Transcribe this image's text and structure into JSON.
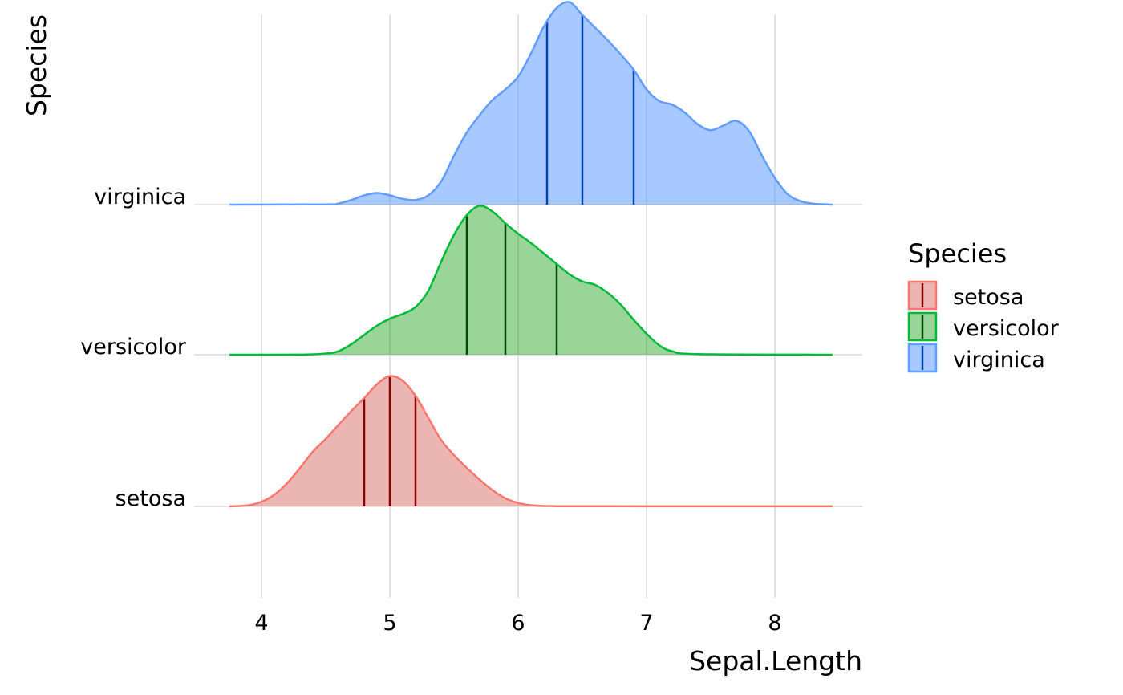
{
  "chart_data": {
    "type": "ridgeline",
    "xlabel": "Sepal.Length",
    "ylabel": "Species",
    "xlim": [
      3.73,
      8.45
    ],
    "x_ticks": [
      4,
      5,
      6,
      7,
      8
    ],
    "grid": true,
    "legend": {
      "title": "Species",
      "position": "right"
    },
    "categories": [
      "setosa",
      "versicolor",
      "virginica"
    ],
    "series": [
      {
        "name": "setosa",
        "color": "#F8766D",
        "fill": "rgba(215,109,99,0.5)",
        "quantile_color": "#8B0000",
        "quantiles": [
          4.8,
          5.0,
          5.2
        ],
        "density": [
          [
            3.75,
            0
          ],
          [
            3.9,
            0.01
          ],
          [
            4.0,
            0.04
          ],
          [
            4.1,
            0.1
          ],
          [
            4.2,
            0.2
          ],
          [
            4.3,
            0.33
          ],
          [
            4.4,
            0.47
          ],
          [
            4.5,
            0.58
          ],
          [
            4.6,
            0.7
          ],
          [
            4.7,
            0.82
          ],
          [
            4.8,
            0.93
          ],
          [
            4.9,
            1.05
          ],
          [
            5.0,
            1.12
          ],
          [
            5.1,
            1.08
          ],
          [
            5.2,
            0.95
          ],
          [
            5.3,
            0.76
          ],
          [
            5.4,
            0.57
          ],
          [
            5.5,
            0.44
          ],
          [
            5.6,
            0.33
          ],
          [
            5.7,
            0.23
          ],
          [
            5.8,
            0.14
          ],
          [
            5.9,
            0.07
          ],
          [
            6.0,
            0.03
          ],
          [
            6.1,
            0.01
          ],
          [
            6.3,
            0.002
          ],
          [
            7.0,
            0.001
          ],
          [
            8.45,
            0.001
          ]
        ]
      },
      {
        "name": "versicolor",
        "color": "#00BA38",
        "fill": "rgba(0,150,0,0.4)",
        "quantile_color": "#004D00",
        "quantiles": [
          5.6,
          5.9,
          6.3
        ],
        "density": [
          [
            3.75,
            0
          ],
          [
            4.3,
            0.001
          ],
          [
            4.5,
            0.01
          ],
          [
            4.6,
            0.03
          ],
          [
            4.7,
            0.09
          ],
          [
            4.8,
            0.17
          ],
          [
            4.9,
            0.25
          ],
          [
            5.0,
            0.31
          ],
          [
            5.1,
            0.35
          ],
          [
            5.2,
            0.41
          ],
          [
            5.3,
            0.55
          ],
          [
            5.4,
            0.8
          ],
          [
            5.5,
            1.03
          ],
          [
            5.6,
            1.2
          ],
          [
            5.7,
            1.28
          ],
          [
            5.8,
            1.23
          ],
          [
            5.9,
            1.13
          ],
          [
            6.0,
            1.04
          ],
          [
            6.1,
            0.96
          ],
          [
            6.2,
            0.87
          ],
          [
            6.3,
            0.78
          ],
          [
            6.4,
            0.69
          ],
          [
            6.5,
            0.63
          ],
          [
            6.6,
            0.6
          ],
          [
            6.7,
            0.53
          ],
          [
            6.8,
            0.43
          ],
          [
            6.9,
            0.3
          ],
          [
            7.0,
            0.18
          ],
          [
            7.1,
            0.08
          ],
          [
            7.2,
            0.03
          ],
          [
            7.4,
            0.005
          ],
          [
            8.45,
            0
          ]
        ]
      },
      {
        "name": "virginica",
        "color": "#619CFF",
        "fill": "rgba(97,156,255,0.55)",
        "quantile_color": "#0047AB",
        "quantiles": [
          6.225,
          6.5,
          6.9
        ],
        "density": [
          [
            3.75,
            0
          ],
          [
            4.5,
            0.002
          ],
          [
            4.6,
            0.01
          ],
          [
            4.7,
            0.04
          ],
          [
            4.8,
            0.08
          ],
          [
            4.9,
            0.1
          ],
          [
            5.0,
            0.08
          ],
          [
            5.1,
            0.05
          ],
          [
            5.2,
            0.04
          ],
          [
            5.3,
            0.08
          ],
          [
            5.4,
            0.2
          ],
          [
            5.5,
            0.42
          ],
          [
            5.6,
            0.62
          ],
          [
            5.7,
            0.77
          ],
          [
            5.8,
            0.9
          ],
          [
            5.9,
            0.99
          ],
          [
            6.0,
            1.1
          ],
          [
            6.1,
            1.3
          ],
          [
            6.2,
            1.53
          ],
          [
            6.3,
            1.69
          ],
          [
            6.4,
            1.74
          ],
          [
            6.5,
            1.63
          ],
          [
            6.6,
            1.52
          ],
          [
            6.7,
            1.41
          ],
          [
            6.8,
            1.29
          ],
          [
            6.9,
            1.16
          ],
          [
            7.0,
            0.99
          ],
          [
            7.1,
            0.89
          ],
          [
            7.2,
            0.86
          ],
          [
            7.3,
            0.79
          ],
          [
            7.4,
            0.69
          ],
          [
            7.5,
            0.64
          ],
          [
            7.6,
            0.68
          ],
          [
            7.7,
            0.72
          ],
          [
            7.8,
            0.63
          ],
          [
            7.9,
            0.42
          ],
          [
            8.0,
            0.23
          ],
          [
            8.1,
            0.09
          ],
          [
            8.2,
            0.03
          ],
          [
            8.3,
            0.008
          ],
          [
            8.45,
            0
          ]
        ]
      }
    ]
  }
}
